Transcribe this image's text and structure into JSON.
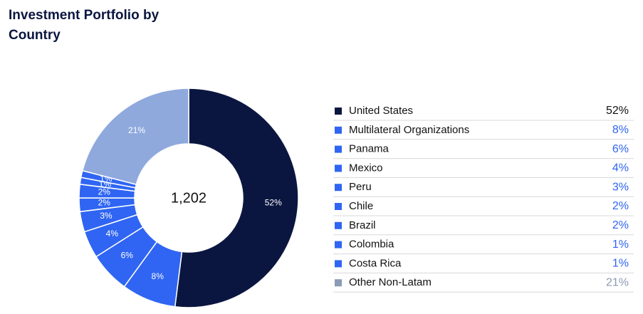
{
  "chart_data": {
    "type": "donut",
    "title": "Investment Portfolio by Country",
    "center_label": "1,202",
    "categories": [
      "United States",
      "Multilateral Organizations",
      "Panama",
      "Mexico",
      "Peru",
      "Chile",
      "Brazil",
      "Colombia",
      "Costa Rica",
      "Other Non-Latam"
    ],
    "values": [
      52,
      8,
      6,
      4,
      3,
      2,
      2,
      1,
      1,
      21
    ],
    "value_labels": [
      "52%",
      "8%",
      "6%",
      "4%",
      "3%",
      "2%",
      "2%",
      "1%",
      "1%",
      "21%"
    ],
    "colors": [
      "#0b1640",
      "#2f65f2",
      "#2f65f2",
      "#2f65f2",
      "#2f65f2",
      "#2f65f2",
      "#2f65f2",
      "#2f65f2",
      "#2f65f2",
      "#8fa9dd"
    ],
    "legend_colors": [
      "#0b1640",
      "#2f65f2",
      "#2f65f2",
      "#2f65f2",
      "#2f65f2",
      "#2f65f2",
      "#2f65f2",
      "#2f65f2",
      "#2f65f2",
      "#8a9bb3"
    ],
    "legend_value_colors": [
      "#111111",
      "#2f65f2",
      "#2f65f2",
      "#2f65f2",
      "#2f65f2",
      "#2f65f2",
      "#2f65f2",
      "#2f65f2",
      "#2f65f2",
      "#8a9bb3"
    ]
  }
}
